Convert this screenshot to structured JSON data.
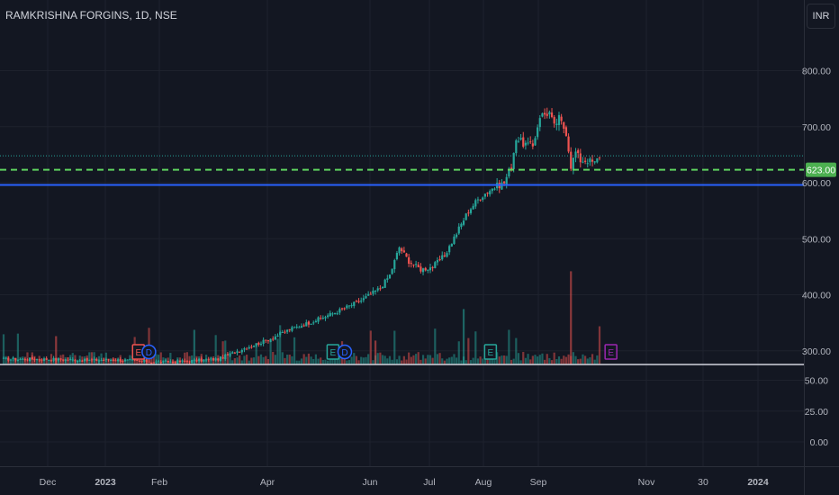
{
  "title": "RAMKRISHNA FORGINS, 1D, NSE",
  "currency_button": "INR",
  "colors": {
    "background": "#131722",
    "up": "#26a69a",
    "down": "#ef5350",
    "support_line": "#2962ff",
    "dashed_line": "#5fd35f",
    "price_badge": "#4caf50",
    "dotted_line": "#26a69a",
    "earnings_past": "#ef5350",
    "dividend": "#2962ff",
    "earnings_future": "#9c27b0"
  },
  "price_badge": "623.00",
  "chart_data": {
    "type": "candlestick",
    "price_axis": {
      "ticks": [
        "800.00",
        "700.00",
        "600.00",
        "500.00",
        "400.00",
        "300.00"
      ],
      "ylim": [
        265,
        840
      ]
    },
    "volume_axis": {
      "ticks": [
        "50.00",
        "25.00",
        "0.00"
      ]
    },
    "x_ticks": [
      "Dec",
      "2023",
      "Feb",
      "Apr",
      "Jun",
      "Jul",
      "Aug",
      "Sep",
      "Nov",
      "30",
      "2024"
    ],
    "levels": {
      "current_price": 623,
      "support": 596,
      "dotted": 648
    },
    "events": [
      {
        "type": "E",
        "date": "2023-01-20"
      },
      {
        "type": "D",
        "date": "2023-01-26"
      },
      {
        "type": "E",
        "date": "2023-05-10"
      },
      {
        "type": "D",
        "date": "2023-05-17"
      },
      {
        "type": "E",
        "date": "2023-08-05"
      },
      {
        "type": "E",
        "date": "2023-10-12"
      }
    ],
    "anchors": [
      [
        0,
        285
      ],
      [
        20,
        285
      ],
      [
        35,
        283
      ],
      [
        45,
        284
      ],
      [
        55,
        282
      ],
      [
        65,
        280
      ],
      [
        75,
        281
      ],
      [
        90,
        285
      ],
      [
        100,
        303
      ],
      [
        110,
        318
      ],
      [
        120,
        338
      ],
      [
        130,
        353
      ],
      [
        140,
        370
      ],
      [
        150,
        390
      ],
      [
        158,
        412
      ],
      [
        162,
        435
      ],
      [
        166,
        485
      ],
      [
        170,
        460
      ],
      [
        175,
        445
      ],
      [
        180,
        450
      ],
      [
        185,
        470
      ],
      [
        190,
        510
      ],
      [
        195,
        550
      ],
      [
        200,
        575
      ],
      [
        205,
        590
      ],
      [
        210,
        600
      ],
      [
        213,
        630
      ],
      [
        215,
        680
      ],
      [
        218,
        670
      ],
      [
        222,
        665
      ],
      [
        225,
        720
      ],
      [
        229,
        725
      ],
      [
        231,
        700
      ],
      [
        233,
        715
      ],
      [
        236,
        690
      ],
      [
        238,
        630
      ],
      [
        240,
        655
      ],
      [
        242,
        640
      ],
      [
        245,
        640
      ],
      [
        248,
        635
      ],
      [
        250,
        648
      ]
    ]
  }
}
